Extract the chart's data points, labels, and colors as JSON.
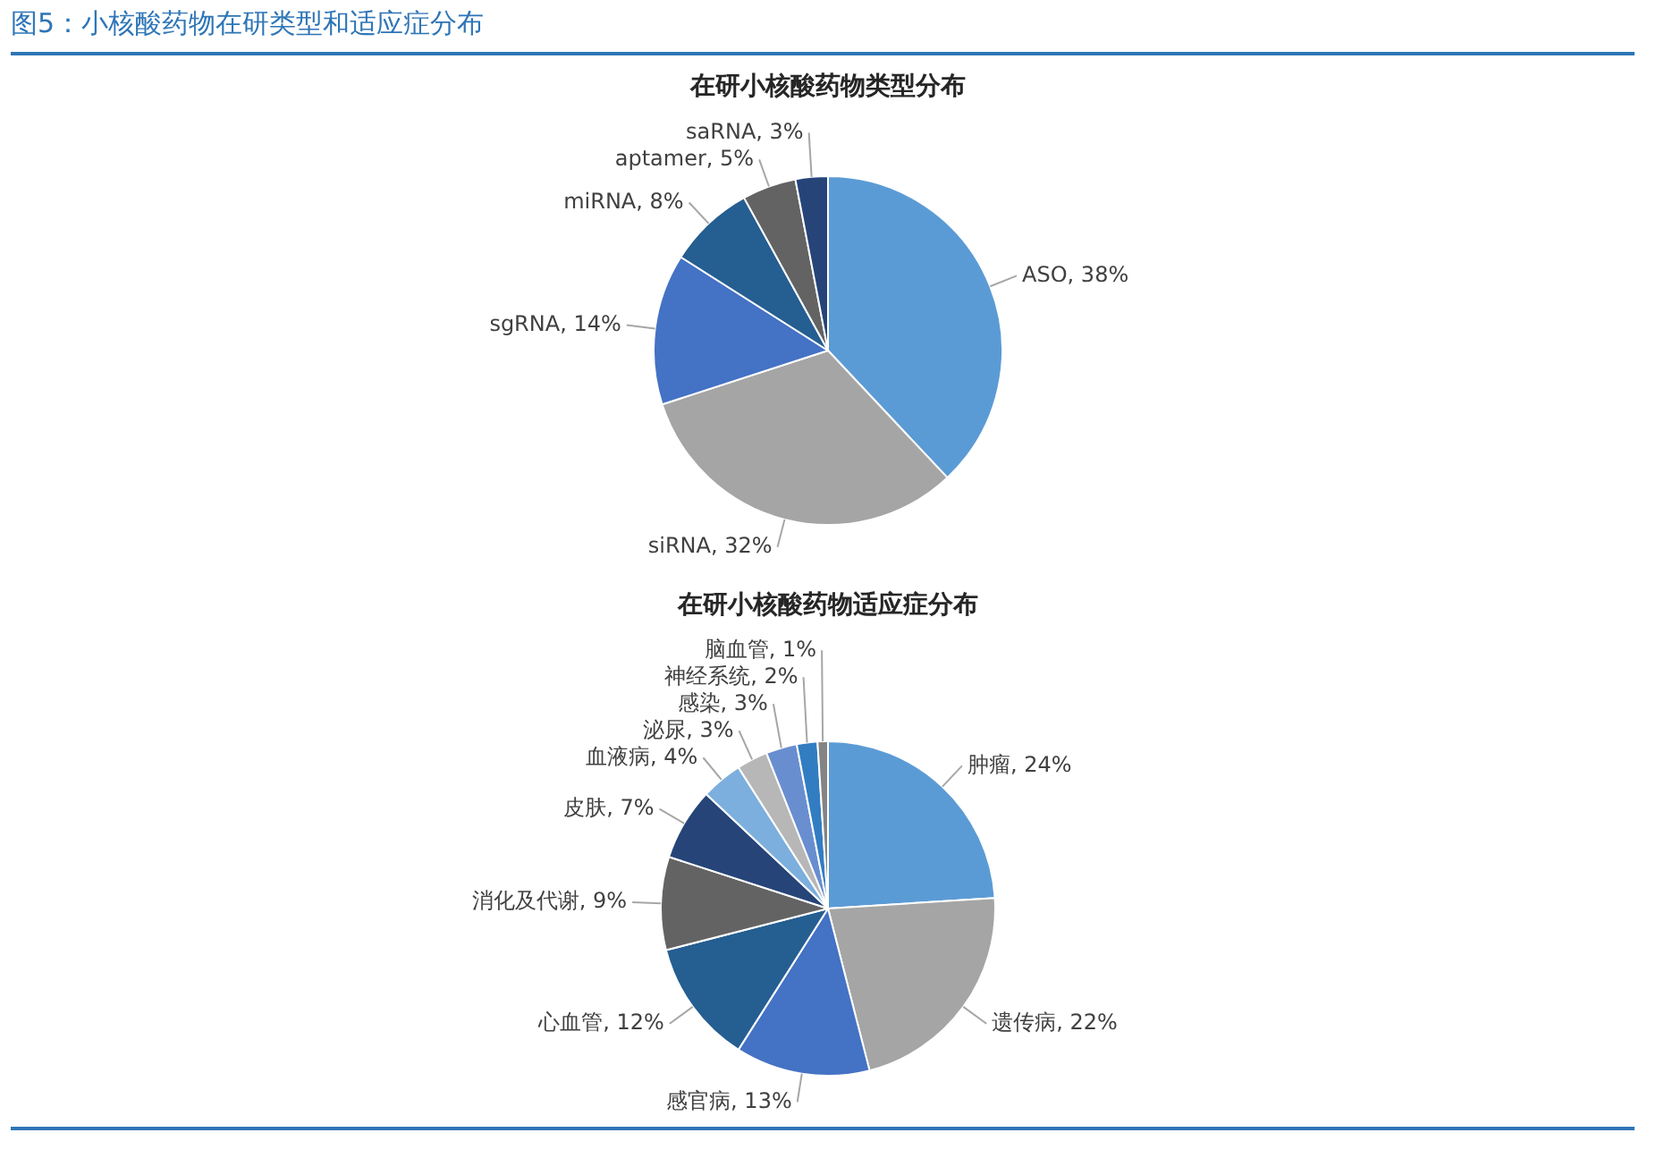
{
  "chart_data": [
    {
      "type": "pie",
      "title": "在研小核酸药物类型分布",
      "annotations": [
        "图5：小核酸药物在研类型和适应症分布"
      ],
      "legend": false,
      "categories": [
        "ASO",
        "siRNA",
        "sgRNA",
        "miRNA",
        "aptamer",
        "saRNA"
      ],
      "values": [
        38,
        32,
        14,
        8,
        5,
        3
      ],
      "value_labels": [
        "38%",
        "32%",
        "14%",
        "8%",
        "5%",
        "3%"
      ],
      "colors": [
        "#5b9bd5",
        "#a5a5a5",
        "#4472c4",
        "#255e91",
        "#636363",
        "#264478"
      ]
    },
    {
      "type": "pie",
      "title": "在研小核酸药物适应症分布",
      "legend": false,
      "categories": [
        "肿瘤",
        "遗传病",
        "感官病",
        "心血管",
        "消化及代谢",
        "皮肤",
        "血液病",
        "泌尿",
        "感染",
        "神经系统",
        "脑血管"
      ],
      "values": [
        24,
        22,
        13,
        12,
        9,
        7,
        4,
        3,
        3,
        2,
        1
      ],
      "value_labels": [
        "24%",
        "22%",
        "13%",
        "12%",
        "9%",
        "7%",
        "4%",
        "3%",
        "3%",
        "2%",
        "1%"
      ],
      "colors": [
        "#5b9bd5",
        "#a5a5a5",
        "#4472c4",
        "#255e91",
        "#636363",
        "#264478",
        "#7cafdd",
        "#b7b7b7",
        "#698ed0",
        "#327dc2",
        "#848484"
      ]
    }
  ]
}
